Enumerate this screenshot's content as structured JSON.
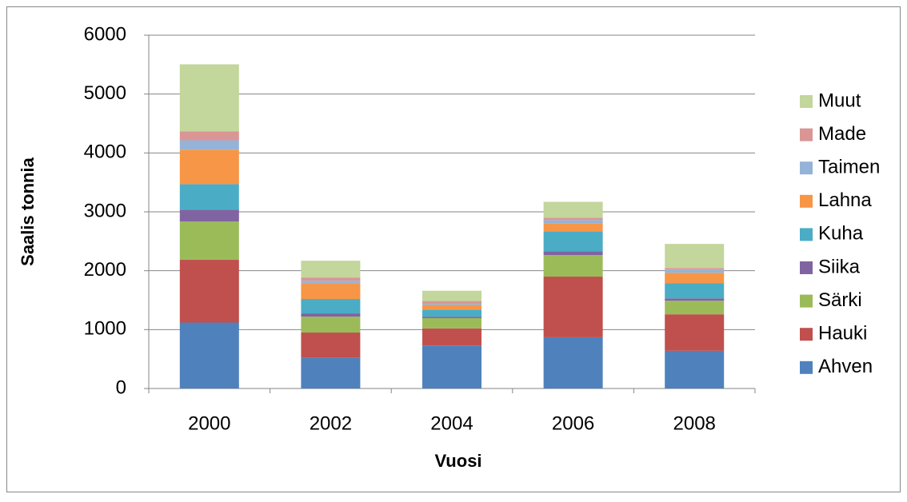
{
  "chart_data": {
    "type": "stacked_bar",
    "xlabel": "Vuosi",
    "ylabel": "Saalis tonnia",
    "categories": [
      "2000",
      "2002",
      "2004",
      "2006",
      "2008"
    ],
    "series": [
      {
        "name": "Ahven",
        "color": "#4F81BD",
        "values": [
          1120,
          520,
          730,
          870,
          640
        ]
      },
      {
        "name": "Hauki",
        "color": "#C0504D",
        "values": [
          1065,
          430,
          290,
          1030,
          620
        ]
      },
      {
        "name": "Särki",
        "color": "#9BBB59",
        "values": [
          650,
          270,
          175,
          365,
          230
        ]
      },
      {
        "name": "Siika",
        "color": "#8064A2",
        "values": [
          200,
          55,
          25,
          65,
          40
        ]
      },
      {
        "name": "Kuha",
        "color": "#4BACC6",
        "values": [
          435,
          245,
          120,
          340,
          260
        ]
      },
      {
        "name": "Lahna",
        "color": "#F79646",
        "values": [
          585,
          270,
          80,
          135,
          175
        ]
      },
      {
        "name": "Taimen",
        "color": "#95B3D7",
        "values": [
          160,
          40,
          25,
          55,
          55
        ]
      },
      {
        "name": "Made",
        "color": "#D99694",
        "values": [
          150,
          55,
          40,
          40,
          25
        ]
      },
      {
        "name": "Muut",
        "color": "#C3D69B",
        "values": [
          1140,
          285,
          175,
          270,
          410
        ]
      }
    ],
    "ylim": [
      0,
      6000
    ],
    "yticks": [
      0,
      1000,
      2000,
      3000,
      4000,
      5000,
      6000
    ],
    "grid": true,
    "legend": "right"
  }
}
